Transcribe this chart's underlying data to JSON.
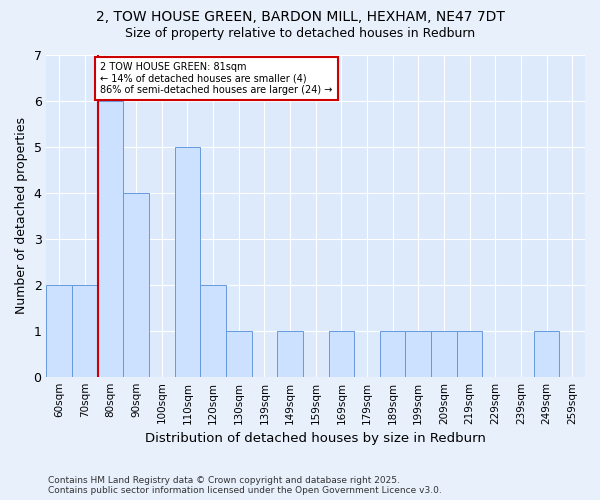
{
  "title1": "2, TOW HOUSE GREEN, BARDON MILL, HEXHAM, NE47 7DT",
  "title2": "Size of property relative to detached houses in Redburn",
  "xlabel": "Distribution of detached houses by size in Redburn",
  "ylabel": "Number of detached properties",
  "categories": [
    "60sqm",
    "70sqm",
    "80sqm",
    "90sqm",
    "100sqm",
    "110sqm",
    "120sqm",
    "130sqm",
    "139sqm",
    "149sqm",
    "159sqm",
    "169sqm",
    "179sqm",
    "189sqm",
    "199sqm",
    "209sqm",
    "219sqm",
    "229sqm",
    "239sqm",
    "249sqm",
    "259sqm"
  ],
  "values": [
    2,
    2,
    6,
    4,
    0,
    5,
    2,
    1,
    0,
    1,
    0,
    1,
    0,
    1,
    1,
    1,
    1,
    0,
    0,
    1,
    0
  ],
  "bar_color": "#cce0ff",
  "bar_edge_color": "#6699dd",
  "red_line_index": 2,
  "annotation_text": "2 TOW HOUSE GREEN: 81sqm\n← 14% of detached houses are smaller (4)\n86% of semi-detached houses are larger (24) →",
  "annotation_box_color": "#ffffff",
  "annotation_edge_color": "#cc0000",
  "ylim": [
    0,
    7
  ],
  "yticks": [
    0,
    1,
    2,
    3,
    4,
    5,
    6,
    7
  ],
  "footer": "Contains HM Land Registry data © Crown copyright and database right 2025.\nContains public sector information licensed under the Open Government Licence v3.0.",
  "background_color": "#e8f0fc",
  "plot_bg_color": "#ddeafc",
  "title1_fontsize": 10,
  "title2_fontsize": 9
}
